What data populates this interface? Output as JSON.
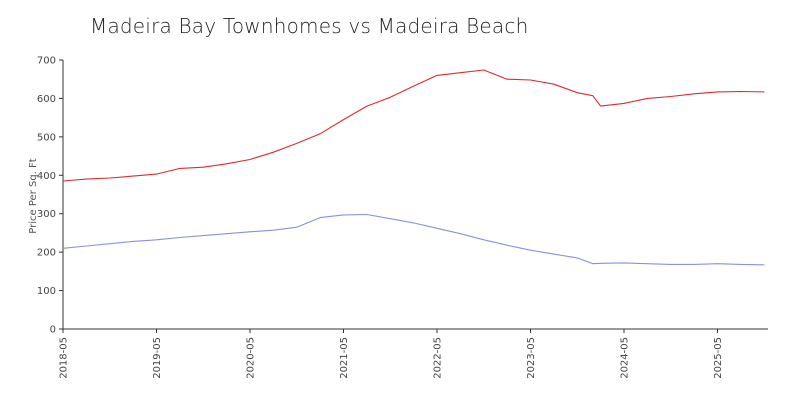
{
  "chart_data": {
    "type": "line",
    "title": "Madeira Bay Townhomes vs Madeira Beach",
    "xlabel": "",
    "ylabel": "Price Per Sq. Ft",
    "ylim": [
      0,
      700
    ],
    "yticks": [
      "0",
      "100",
      "200",
      "300",
      "400",
      "500",
      "600",
      "700"
    ],
    "xticks": [
      "2018-05",
      "2019-05",
      "2020-05",
      "2021-05",
      "2022-05",
      "2023-05",
      "2024-05",
      "2025-05"
    ],
    "grid": false,
    "legend": "none",
    "x": [
      "2018-05",
      "2018-08",
      "2018-11",
      "2019-02",
      "2019-05",
      "2019-08",
      "2019-11",
      "2020-02",
      "2020-05",
      "2020-08",
      "2020-11",
      "2021-02",
      "2021-05",
      "2021-08",
      "2021-11",
      "2022-02",
      "2022-05",
      "2022-08",
      "2022-11",
      "2023-02",
      "2023-05",
      "2023-08",
      "2023-11",
      "2024-01",
      "2024-02",
      "2024-05",
      "2024-08",
      "2024-11",
      "2025-02",
      "2025-05",
      "2025-08",
      "2025-11"
    ],
    "series": [
      {
        "color": "#e8262a",
        "values": [
          385,
          390,
          393,
          398,
          403,
          418,
          421,
          430,
          441,
          460,
          483,
          508,
          545,
          580,
          603,
          632,
          660,
          667,
          674,
          650,
          648,
          637,
          615,
          607,
          580,
          587,
          600,
          605,
          612,
          617,
          618,
          617
        ]
      },
      {
        "color": "#8b8fe6",
        "values": [
          210,
          216,
          222,
          228,
          232,
          238,
          243,
          248,
          253,
          257,
          265,
          290,
          297,
          298,
          287,
          276,
          262,
          248,
          232,
          218,
          205,
          195,
          185,
          170,
          171,
          172,
          170,
          168,
          168,
          170,
          168,
          167
        ]
      }
    ]
  }
}
